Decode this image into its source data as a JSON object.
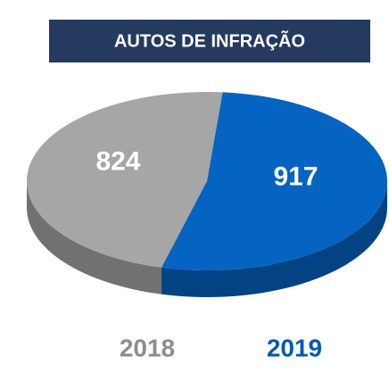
{
  "chart_data": {
    "type": "pie",
    "title": "AUTOS DE INFRAÇÃO",
    "categories": [
      "2018",
      "2019"
    ],
    "values": [
      824,
      917
    ],
    "colors": [
      "#a6a6a6",
      "#0563c1"
    ]
  }
}
